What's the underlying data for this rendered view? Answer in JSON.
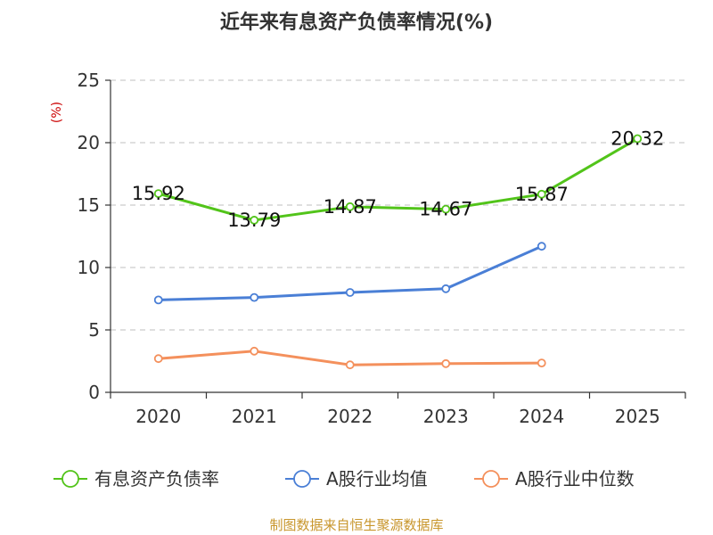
{
  "chart_data": {
    "type": "line",
    "title": "近年来有息资产负债率情况(%)",
    "ylabel": "(%)",
    "xlabel": "",
    "categories": [
      "2020",
      "2021",
      "2022",
      "2023",
      "2024",
      "2025"
    ],
    "ylim": [
      0,
      25
    ],
    "yticks": [
      0,
      5,
      10,
      15,
      20,
      25
    ],
    "grid": true,
    "legend_position": "bottom",
    "series": [
      {
        "name": "有息资产负债率",
        "color": "#52c41a",
        "values": [
          15.92,
          13.79,
          14.87,
          14.67,
          15.87,
          20.32
        ],
        "labels": [
          "15.92",
          "13.79",
          "14.87",
          "14.67",
          "15.87",
          "20.32"
        ],
        "show_labels": true
      },
      {
        "name": "A股行业均值",
        "color": "#4a7fd6",
        "values": [
          7.4,
          7.6,
          8.0,
          8.3,
          11.7,
          null
        ],
        "show_labels": false
      },
      {
        "name": "A股行业中位数",
        "color": "#f4905c",
        "values": [
          2.7,
          3.3,
          2.2,
          2.3,
          2.35,
          null
        ],
        "show_labels": false
      }
    ]
  },
  "source": "制图数据来自恒生聚源数据库",
  "colors": {
    "unit_label": "#cc0000",
    "source_text": "#c8962c",
    "grid": "#cccccc",
    "axis": "#333333"
  }
}
